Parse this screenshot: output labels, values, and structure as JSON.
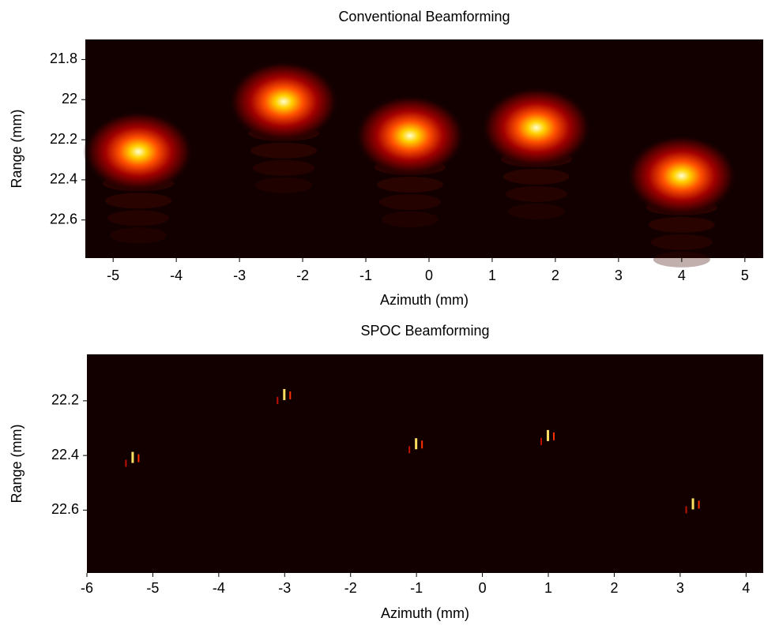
{
  "chart_data": [
    {
      "type": "heatmap",
      "title": "Conventional Beamforming",
      "xlabel": "Azimuth (mm)",
      "ylabel": "Range (mm)",
      "x": [
        -4.6,
        -2.3,
        -0.3,
        1.7,
        4.0
      ],
      "values": [
        22.26,
        22.01,
        22.18,
        22.14,
        22.38
      ],
      "xlim": [
        -5.44,
        5.29
      ],
      "ylim": [
        22.79,
        21.7
      ],
      "xticks": [
        -5,
        -4,
        -3,
        -2,
        -1,
        0,
        1,
        2,
        3,
        4,
        5
      ],
      "yticks": [
        21.8,
        22,
        22.2,
        22.4,
        22.6
      ]
    },
    {
      "type": "sparse",
      "title": "SPOC Beamforming",
      "xlabel": "Azimuth (mm)",
      "ylabel": "Range (mm)",
      "x": [
        -5.3,
        -3.0,
        -1.0,
        1.0,
        3.2
      ],
      "values": [
        22.41,
        22.18,
        22.36,
        22.33,
        22.58
      ],
      "xlim": [
        -6,
        4.26
      ],
      "ylim": [
        22.83,
        22.03
      ],
      "xticks": [
        -6,
        -5,
        -4,
        -3,
        -2,
        -1,
        0,
        1,
        2,
        3,
        4
      ],
      "yticks": [
        22.2,
        22.4,
        22.6
      ]
    }
  ]
}
